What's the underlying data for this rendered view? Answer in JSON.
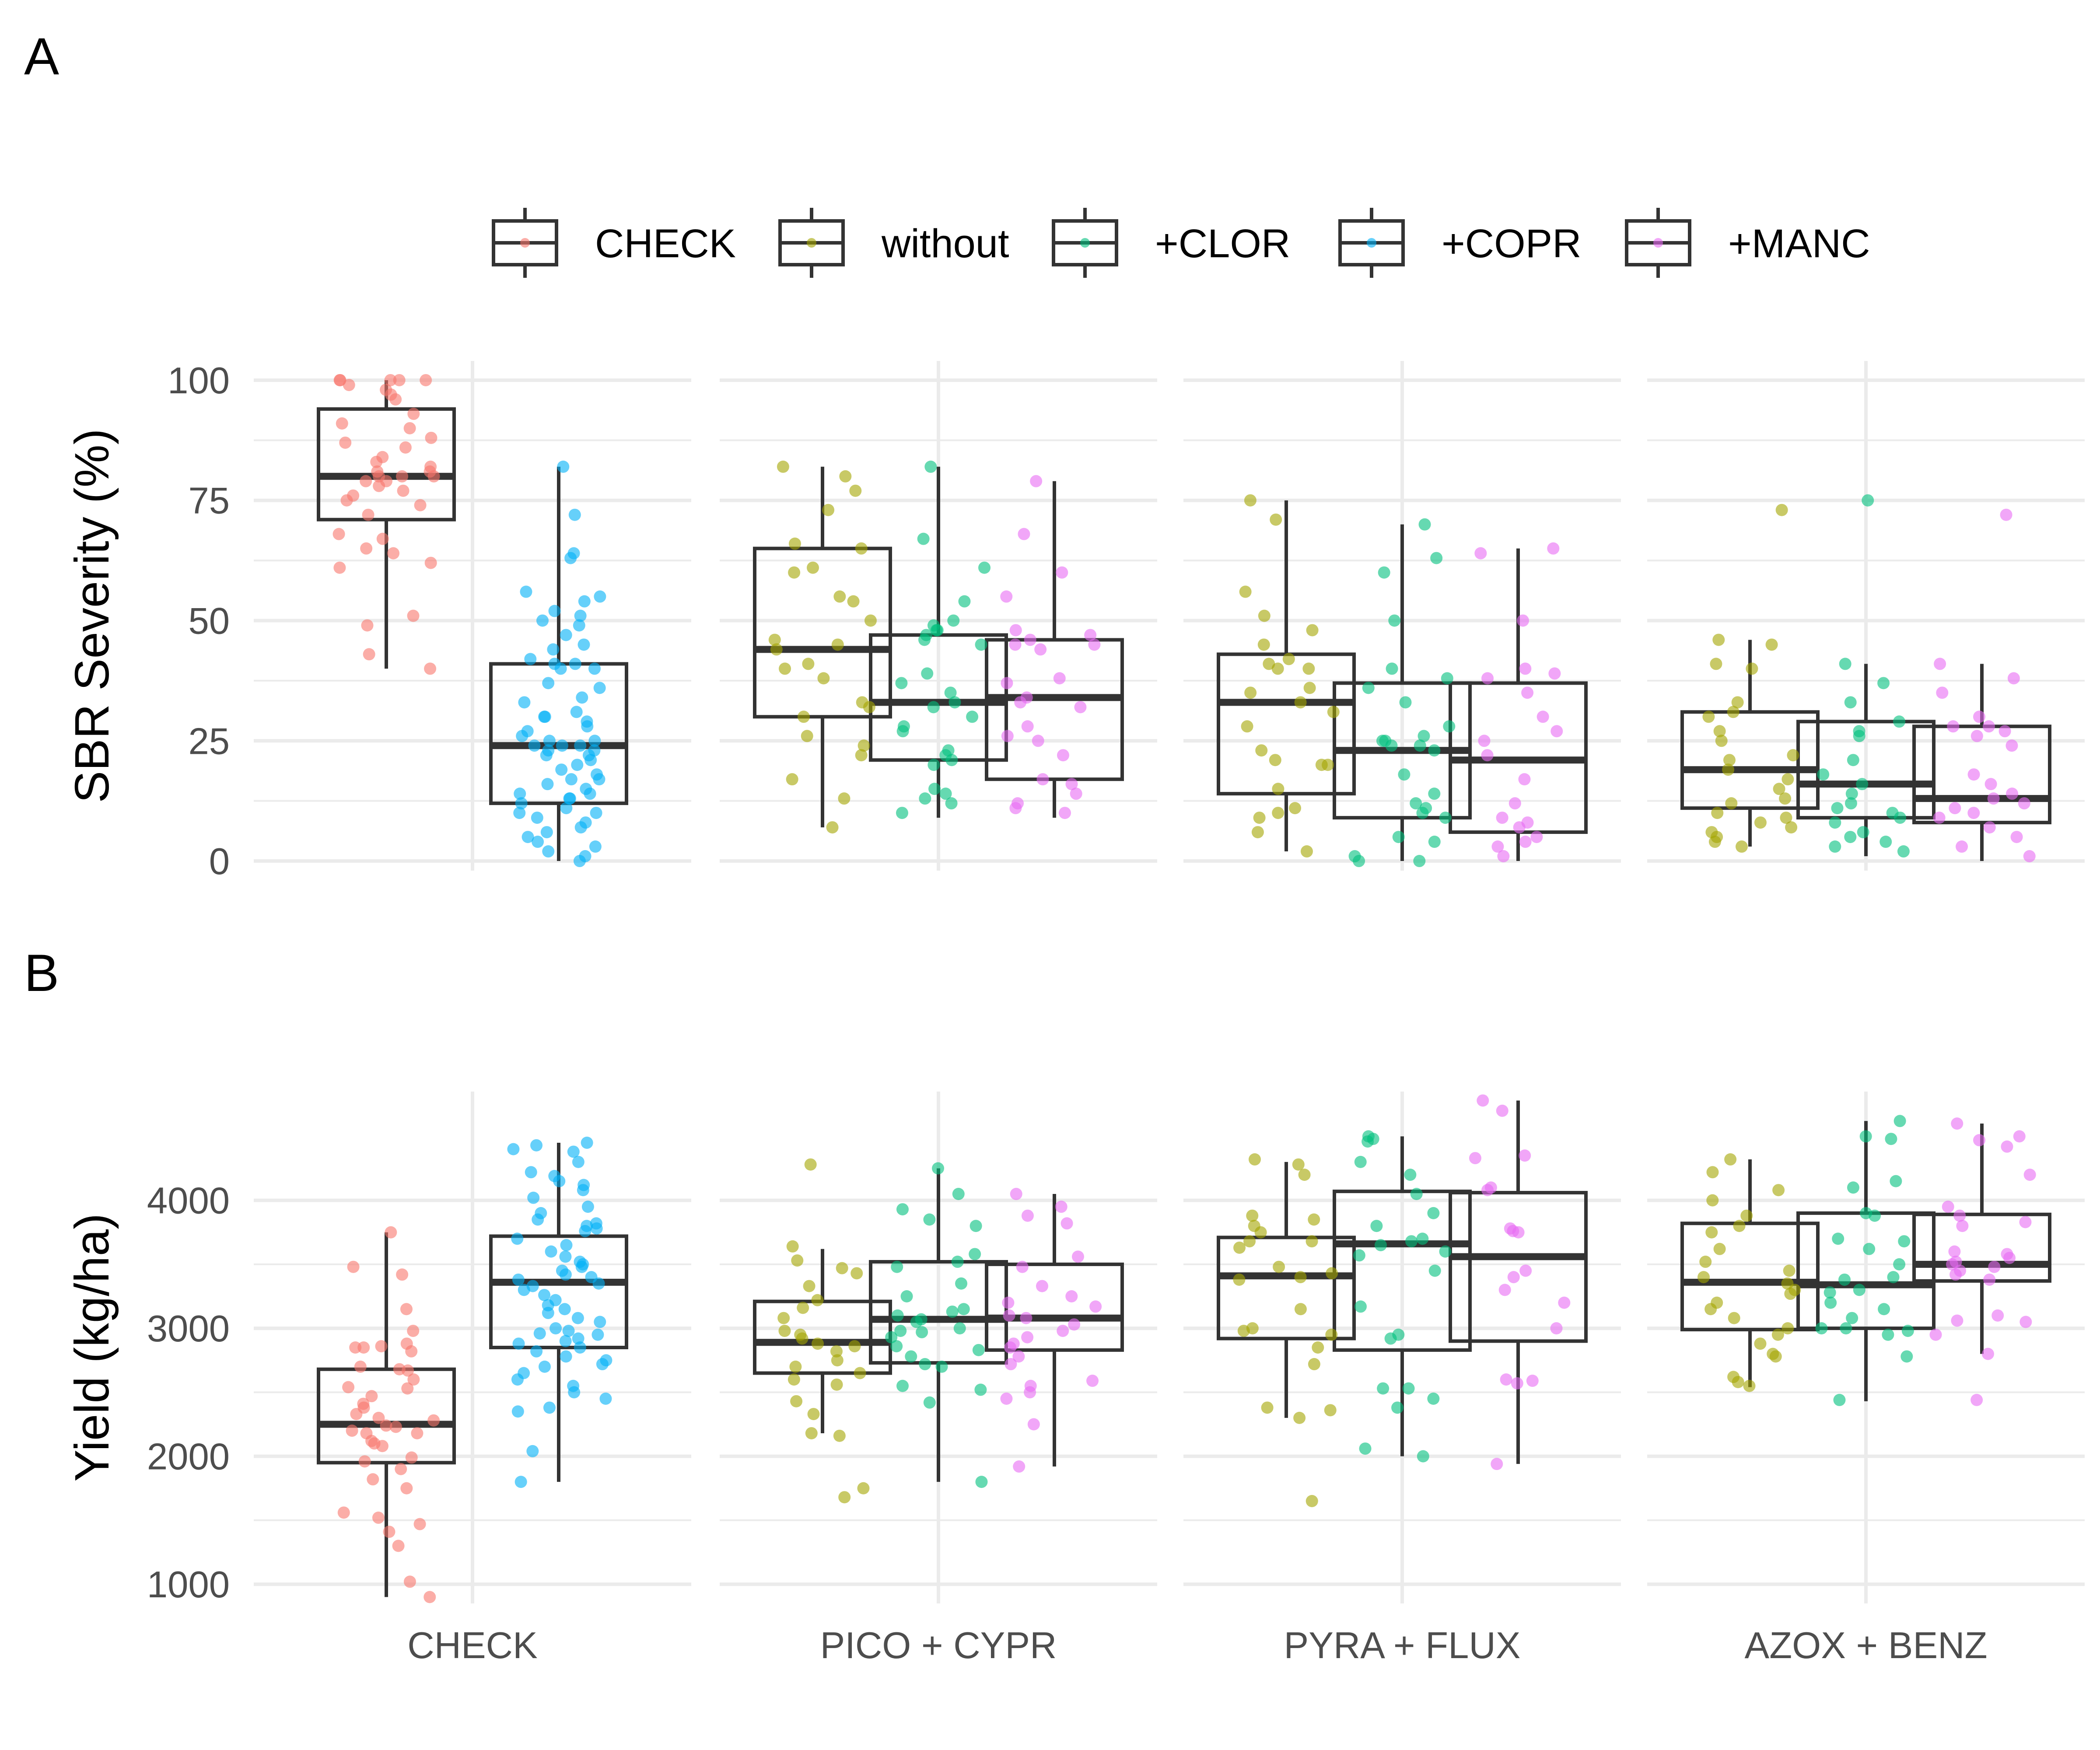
{
  "panel_labels": [
    "A",
    "B"
  ],
  "legend": {
    "items": [
      {
        "key": "check",
        "label": "CHECK",
        "color": "#F8766D"
      },
      {
        "key": "without",
        "label": "without",
        "color": "#A3A500"
      },
      {
        "key": "clor",
        "label": "+CLOR",
        "color": "#00BF7D"
      },
      {
        "key": "copr",
        "label": "+COPR",
        "color": "#00B0F6"
      },
      {
        "key": "manc",
        "label": "+MANC",
        "color": "#E76BF3"
      }
    ]
  },
  "chart_data": [
    {
      "type": "box",
      "panel": "A",
      "ylabel": "SBR Severity (%)",
      "ylim": [
        -2,
        104
      ],
      "yticks": [
        0,
        25,
        50,
        75,
        100
      ],
      "grid": true,
      "legend_position": "top",
      "x_groups": [
        "CHECK",
        "PICO + CYPR",
        "PYRA + FLUX",
        "AZOX + BENZ"
      ],
      "boxes": [
        {
          "group": "CHECK",
          "series": "check",
          "min": 40,
          "q1": 71,
          "median": 80,
          "q3": 94,
          "max": 100
        },
        {
          "group": "CHECK",
          "series": "copr",
          "min": 0,
          "q1": 12,
          "median": 24,
          "q3": 41,
          "max": 82
        },
        {
          "group": "PICO + CYPR",
          "series": "without",
          "min": 7,
          "q1": 30,
          "median": 44,
          "q3": 65,
          "max": 82
        },
        {
          "group": "PICO + CYPR",
          "series": "clor",
          "min": 9,
          "q1": 21,
          "median": 33,
          "q3": 47,
          "max": 82
        },
        {
          "group": "PICO + CYPR",
          "series": "manc",
          "min": 9,
          "q1": 17,
          "median": 34,
          "q3": 46,
          "max": 79
        },
        {
          "group": "PYRA + FLUX",
          "series": "without",
          "min": 2,
          "q1": 14,
          "median": 33,
          "q3": 43,
          "max": 75
        },
        {
          "group": "PYRA + FLUX",
          "series": "clor",
          "min": 0,
          "q1": 9,
          "median": 23,
          "q3": 37,
          "max": 70
        },
        {
          "group": "PYRA + FLUX",
          "series": "manc",
          "min": 0,
          "q1": 6,
          "median": 21,
          "q3": 37,
          "max": 65
        },
        {
          "group": "AZOX + BENZ",
          "series": "without",
          "min": 3,
          "q1": 11,
          "median": 19,
          "q3": 31,
          "max": 46
        },
        {
          "group": "AZOX + BENZ",
          "series": "clor",
          "min": 1,
          "q1": 9,
          "median": 16,
          "q3": 29,
          "max": 41
        },
        {
          "group": "AZOX + BENZ",
          "series": "manc",
          "min": 0,
          "q1": 8,
          "median": 13,
          "q3": 28,
          "max": 41
        }
      ],
      "points": [
        {
          "group": "CHECK",
          "series": "check",
          "values": [
            100,
            100,
            100,
            100,
            100,
            99,
            98,
            97,
            96,
            93,
            91,
            90,
            88,
            87,
            86,
            84,
            83,
            82,
            81,
            81,
            80,
            80,
            80,
            79,
            79,
            78,
            77,
            76,
            75,
            74,
            72,
            68,
            67,
            65,
            64,
            62,
            61,
            51,
            49,
            43,
            40
          ]
        },
        {
          "group": "CHECK",
          "series": "copr",
          "values": [
            82,
            72,
            64,
            63,
            56,
            55,
            54,
            52,
            51,
            50,
            49,
            47,
            45,
            44,
            42,
            41,
            41,
            40,
            40,
            37,
            36,
            34,
            33,
            31,
            30,
            30,
            29,
            28,
            27,
            26,
            25,
            25,
            24,
            24,
            24,
            23,
            23,
            22,
            22,
            21,
            20,
            19,
            18,
            17,
            17,
            16,
            15,
            14,
            14,
            13,
            13,
            12,
            11,
            10,
            10,
            9,
            8,
            7,
            6,
            5,
            4,
            3,
            2,
            1,
            0
          ]
        },
        {
          "group": "PICO + CYPR",
          "series": "without",
          "values": [
            82,
            80,
            77,
            73,
            66,
            65,
            61,
            60,
            55,
            54,
            50,
            46,
            45,
            44,
            41,
            40,
            38,
            33,
            32,
            30,
            26,
            24,
            22,
            17,
            13,
            7
          ]
        },
        {
          "group": "PICO + CYPR",
          "series": "clor",
          "values": [
            82,
            67,
            61,
            54,
            50,
            49,
            48,
            48,
            47,
            46,
            45,
            39,
            37,
            35,
            33,
            32,
            30,
            28,
            27,
            23,
            22,
            21,
            20,
            15,
            14,
            13,
            12,
            10
          ]
        },
        {
          "group": "PICO + CYPR",
          "series": "manc",
          "values": [
            79,
            68,
            60,
            55,
            48,
            47,
            46,
            45,
            45,
            44,
            38,
            37,
            34,
            33,
            32,
            28,
            26,
            25,
            22,
            17,
            16,
            14,
            12,
            11,
            10
          ]
        },
        {
          "group": "PYRA + FLUX",
          "series": "without",
          "values": [
            75,
            71,
            56,
            51,
            48,
            45,
            42,
            41,
            40,
            40,
            36,
            35,
            33,
            31,
            28,
            23,
            21,
            20,
            20,
            15,
            11,
            10,
            9,
            6,
            2
          ]
        },
        {
          "group": "PYRA + FLUX",
          "series": "clor",
          "values": [
            70,
            63,
            60,
            50,
            40,
            38,
            36,
            33,
            28,
            26,
            25,
            25,
            24,
            24,
            23,
            18,
            14,
            12,
            11,
            10,
            9,
            5,
            4,
            1,
            0,
            0
          ]
        },
        {
          "group": "PYRA + FLUX",
          "series": "manc",
          "values": [
            65,
            64,
            50,
            40,
            39,
            38,
            35,
            30,
            27,
            25,
            22,
            17,
            12,
            9,
            8,
            7,
            5,
            4,
            3,
            1
          ]
        },
        {
          "group": "AZOX + BENZ",
          "series": "without",
          "values": [
            73,
            46,
            45,
            41,
            40,
            33,
            31,
            30,
            27,
            25,
            22,
            21,
            19,
            17,
            15,
            13,
            12,
            10,
            9,
            8,
            7,
            6,
            5,
            4,
            3
          ]
        },
        {
          "group": "AZOX + BENZ",
          "series": "clor",
          "values": [
            75,
            41,
            37,
            33,
            29,
            27,
            26,
            21,
            18,
            16,
            14,
            12,
            11,
            10,
            9,
            8,
            6,
            5,
            4,
            3,
            2
          ]
        },
        {
          "group": "AZOX + BENZ",
          "series": "manc",
          "values": [
            72,
            41,
            38,
            35,
            30,
            28,
            28,
            27,
            26,
            24,
            18,
            16,
            14,
            13,
            12,
            11,
            10,
            9,
            7,
            5,
            3,
            1
          ]
        }
      ]
    },
    {
      "type": "box",
      "panel": "B",
      "ylabel": "Yield (kg/ha)",
      "ylim": [
        850,
        4850
      ],
      "yticks": [
        1000,
        2000,
        3000,
        4000
      ],
      "grid": true,
      "legend_position": "top",
      "x_groups": [
        "CHECK",
        "PICO + CYPR",
        "PYRA + FLUX",
        "AZOX + BENZ"
      ],
      "boxes": [
        {
          "group": "CHECK",
          "series": "check",
          "min": 900,
          "q1": 1950,
          "median": 2250,
          "q3": 2680,
          "max": 3750
        },
        {
          "group": "CHECK",
          "series": "copr",
          "min": 1800,
          "q1": 2850,
          "median": 3360,
          "q3": 3720,
          "max": 4450
        },
        {
          "group": "PICO + CYPR",
          "series": "without",
          "min": 2180,
          "q1": 2650,
          "median": 2890,
          "q3": 3210,
          "max": 3620
        },
        {
          "group": "PICO + CYPR",
          "series": "clor",
          "min": 1800,
          "q1": 2730,
          "median": 3070,
          "q3": 3520,
          "max": 4250
        },
        {
          "group": "PICO + CYPR",
          "series": "manc",
          "min": 1920,
          "q1": 2830,
          "median": 3080,
          "q3": 3500,
          "max": 4050
        },
        {
          "group": "PYRA + FLUX",
          "series": "without",
          "min": 2300,
          "q1": 2920,
          "median": 3410,
          "q3": 3710,
          "max": 4300
        },
        {
          "group": "PYRA + FLUX",
          "series": "clor",
          "min": 2000,
          "q1": 2830,
          "median": 3660,
          "q3": 4070,
          "max": 4500
        },
        {
          "group": "PYRA + FLUX",
          "series": "manc",
          "min": 1940,
          "q1": 2900,
          "median": 3560,
          "q3": 4060,
          "max": 4780
        },
        {
          "group": "AZOX + BENZ",
          "series": "without",
          "min": 2540,
          "q1": 2990,
          "median": 3360,
          "q3": 3820,
          "max": 4320
        },
        {
          "group": "AZOX + BENZ",
          "series": "clor",
          "min": 2430,
          "q1": 3000,
          "median": 3340,
          "q3": 3900,
          "max": 4620
        },
        {
          "group": "AZOX + BENZ",
          "series": "manc",
          "min": 2800,
          "q1": 3370,
          "median": 3500,
          "q3": 3890,
          "max": 4600
        }
      ],
      "points": [
        {
          "group": "CHECK",
          "series": "check",
          "values": [
            3750,
            3480,
            3420,
            3150,
            2980,
            2880,
            2860,
            2850,
            2850,
            2820,
            2700,
            2680,
            2670,
            2600,
            2540,
            2530,
            2470,
            2410,
            2380,
            2330,
            2300,
            2280,
            2240,
            2230,
            2200,
            2180,
            2180,
            2120,
            2100,
            2080,
            1990,
            1960,
            1900,
            1820,
            1750,
            1560,
            1520,
            1470,
            1410,
            1300,
            1020,
            900
          ]
        },
        {
          "group": "CHECK",
          "series": "copr",
          "values": [
            4450,
            4430,
            4400,
            4380,
            4300,
            4220,
            4190,
            4150,
            4120,
            4080,
            4020,
            3950,
            3900,
            3850,
            3820,
            3800,
            3780,
            3760,
            3700,
            3650,
            3600,
            3560,
            3520,
            3500,
            3480,
            3450,
            3420,
            3400,
            3380,
            3350,
            3330,
            3300,
            3260,
            3220,
            3180,
            3150,
            3120,
            3080,
            3050,
            3000,
            2980,
            2960,
            2950,
            2920,
            2900,
            2880,
            2850,
            2820,
            2780,
            2750,
            2720,
            2700,
            2650,
            2600,
            2550,
            2500,
            2450,
            2380,
            2350,
            2040,
            1800
          ]
        },
        {
          "group": "PICO + CYPR",
          "series": "without",
          "values": [
            4280,
            3640,
            3530,
            3470,
            3430,
            3330,
            3220,
            3160,
            3080,
            2980,
            2950,
            2920,
            2880,
            2860,
            2820,
            2750,
            2700,
            2650,
            2600,
            2560,
            2430,
            2330,
            2180,
            2160,
            1750,
            1680
          ]
        },
        {
          "group": "PICO + CYPR",
          "series": "clor",
          "values": [
            4250,
            4050,
            3930,
            3850,
            3800,
            3580,
            3520,
            3480,
            3350,
            3250,
            3150,
            3130,
            3100,
            3070,
            3050,
            3000,
            2980,
            2970,
            2930,
            2860,
            2830,
            2780,
            2720,
            2700,
            2550,
            2520,
            2420,
            1800
          ]
        },
        {
          "group": "PICO + CYPR",
          "series": "manc",
          "values": [
            4050,
            3950,
            3880,
            3820,
            3560,
            3480,
            3330,
            3250,
            3200,
            3170,
            3100,
            3080,
            3030,
            2980,
            2930,
            2880,
            2850,
            2780,
            2720,
            2590,
            2550,
            2500,
            2450,
            2250,
            1920
          ]
        },
        {
          "group": "PYRA + FLUX",
          "series": "without",
          "values": [
            4320,
            4280,
            4200,
            3880,
            3850,
            3800,
            3750,
            3680,
            3680,
            3630,
            3480,
            3430,
            3400,
            3380,
            3150,
            3000,
            2980,
            2950,
            2850,
            2720,
            2380,
            2360,
            2300,
            1650
          ]
        },
        {
          "group": "PYRA + FLUX",
          "series": "clor",
          "values": [
            4500,
            4480,
            4460,
            4300,
            4200,
            4050,
            3900,
            3800,
            3700,
            3680,
            3650,
            3600,
            3570,
            3450,
            3170,
            2950,
            2920,
            2530,
            2530,
            2450,
            2380,
            2060,
            2000
          ]
        },
        {
          "group": "PYRA + FLUX",
          "series": "manc",
          "values": [
            4780,
            4700,
            4350,
            4330,
            4100,
            4080,
            3780,
            3760,
            3750,
            3450,
            3400,
            3300,
            3200,
            3000,
            2600,
            2590,
            2570,
            1940
          ]
        },
        {
          "group": "AZOX + BENZ",
          "series": "without",
          "values": [
            4320,
            4220,
            4080,
            4000,
            3880,
            3800,
            3750,
            3620,
            3520,
            3450,
            3400,
            3350,
            3300,
            3270,
            3200,
            3150,
            3080,
            3000,
            2950,
            2880,
            2800,
            2780,
            2620,
            2580,
            2550
          ]
        },
        {
          "group": "AZOX + BENZ",
          "series": "clor",
          "values": [
            4620,
            4500,
            4480,
            4150,
            4100,
            3900,
            3880,
            3700,
            3680,
            3620,
            3500,
            3400,
            3380,
            3300,
            3280,
            3200,
            3150,
            3080,
            3000,
            3000,
            2980,
            2950,
            2780,
            2440
          ]
        },
        {
          "group": "AZOX + BENZ",
          "series": "manc",
          "values": [
            4600,
            4500,
            4470,
            4420,
            4200,
            3950,
            3880,
            3830,
            3800,
            3600,
            3580,
            3550,
            3520,
            3500,
            3480,
            3450,
            3420,
            3380,
            3100,
            3060,
            3050,
            2950,
            2800,
            2440
          ]
        }
      ]
    }
  ]
}
